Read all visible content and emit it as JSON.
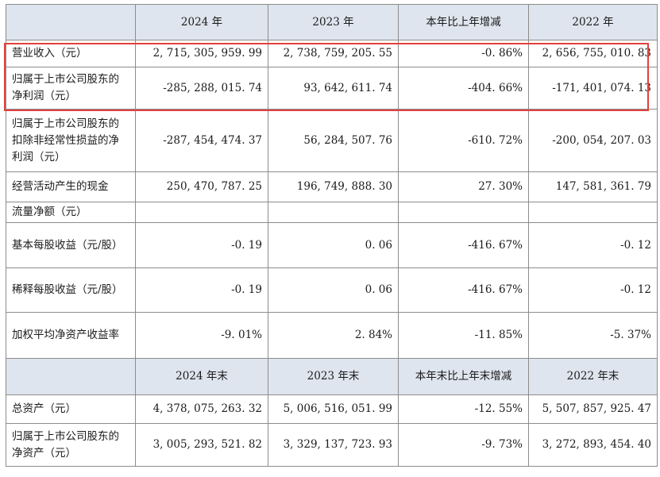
{
  "header1": [
    "2024 年",
    "2023 年",
    "本年比上年增减",
    "2022 年"
  ],
  "rows1": [
    {
      "label": "营业收入（元）",
      "values": [
        "2, 715, 305, 959. 99",
        "2, 738, 759, 205. 55",
        "-0. 86%",
        "2, 656, 755, 010. 83"
      ]
    },
    {
      "label": "归属于上市公司股东的净利润（元）",
      "values": [
        "-285, 288, 015. 74",
        "93, 642, 611. 74",
        "-404. 66%",
        "-171, 401, 074. 13"
      ]
    },
    {
      "label": "归属于上市公司股东的扣除非经常性损益的净利润（元）",
      "values": [
        "-287, 454, 474. 37",
        "56, 284, 507. 76",
        "-610. 72%",
        "-200, 054, 207. 03"
      ]
    },
    {
      "label": "经营活动产生的现金",
      "values": [
        "250, 470, 787. 25",
        "196, 749, 888. 30",
        "27. 30%",
        "147, 581, 361. 79"
      ]
    },
    {
      "label": "流量净额（元）",
      "values": [
        "",
        "",
        "",
        ""
      ]
    },
    {
      "label": "基本每股收益（元/股）",
      "values": [
        "-0. 19",
        "0. 06",
        "-416. 67%",
        "-0. 12"
      ]
    },
    {
      "label": "稀释每股收益（元/股）",
      "values": [
        "-0. 19",
        "0. 06",
        "-416. 67%",
        "-0. 12"
      ]
    },
    {
      "label": "加权平均净资产收益率",
      "values": [
        "-9. 01%",
        "2. 84%",
        "-11. 85%",
        "-5. 37%"
      ]
    }
  ],
  "header2": [
    "2024 年末",
    "2023 年末",
    "本年末比上年末增减",
    "2022 年末"
  ],
  "rows2": [
    {
      "label": "总资产（元）",
      "values": [
        "4, 378, 075, 263. 32",
        "5, 006, 516, 051. 99",
        "-12. 55%",
        "5, 507, 857, 925. 47"
      ]
    },
    {
      "label": "归属于上市公司股东的净资产（元）",
      "values": [
        "3, 005, 293, 521. 82",
        "3, 329, 137, 723. 93",
        "-9. 73%",
        "3, 272, 893, 454. 40"
      ]
    }
  ],
  "highlight_color": "#e0413e",
  "header_bg": "#dfe5ee"
}
